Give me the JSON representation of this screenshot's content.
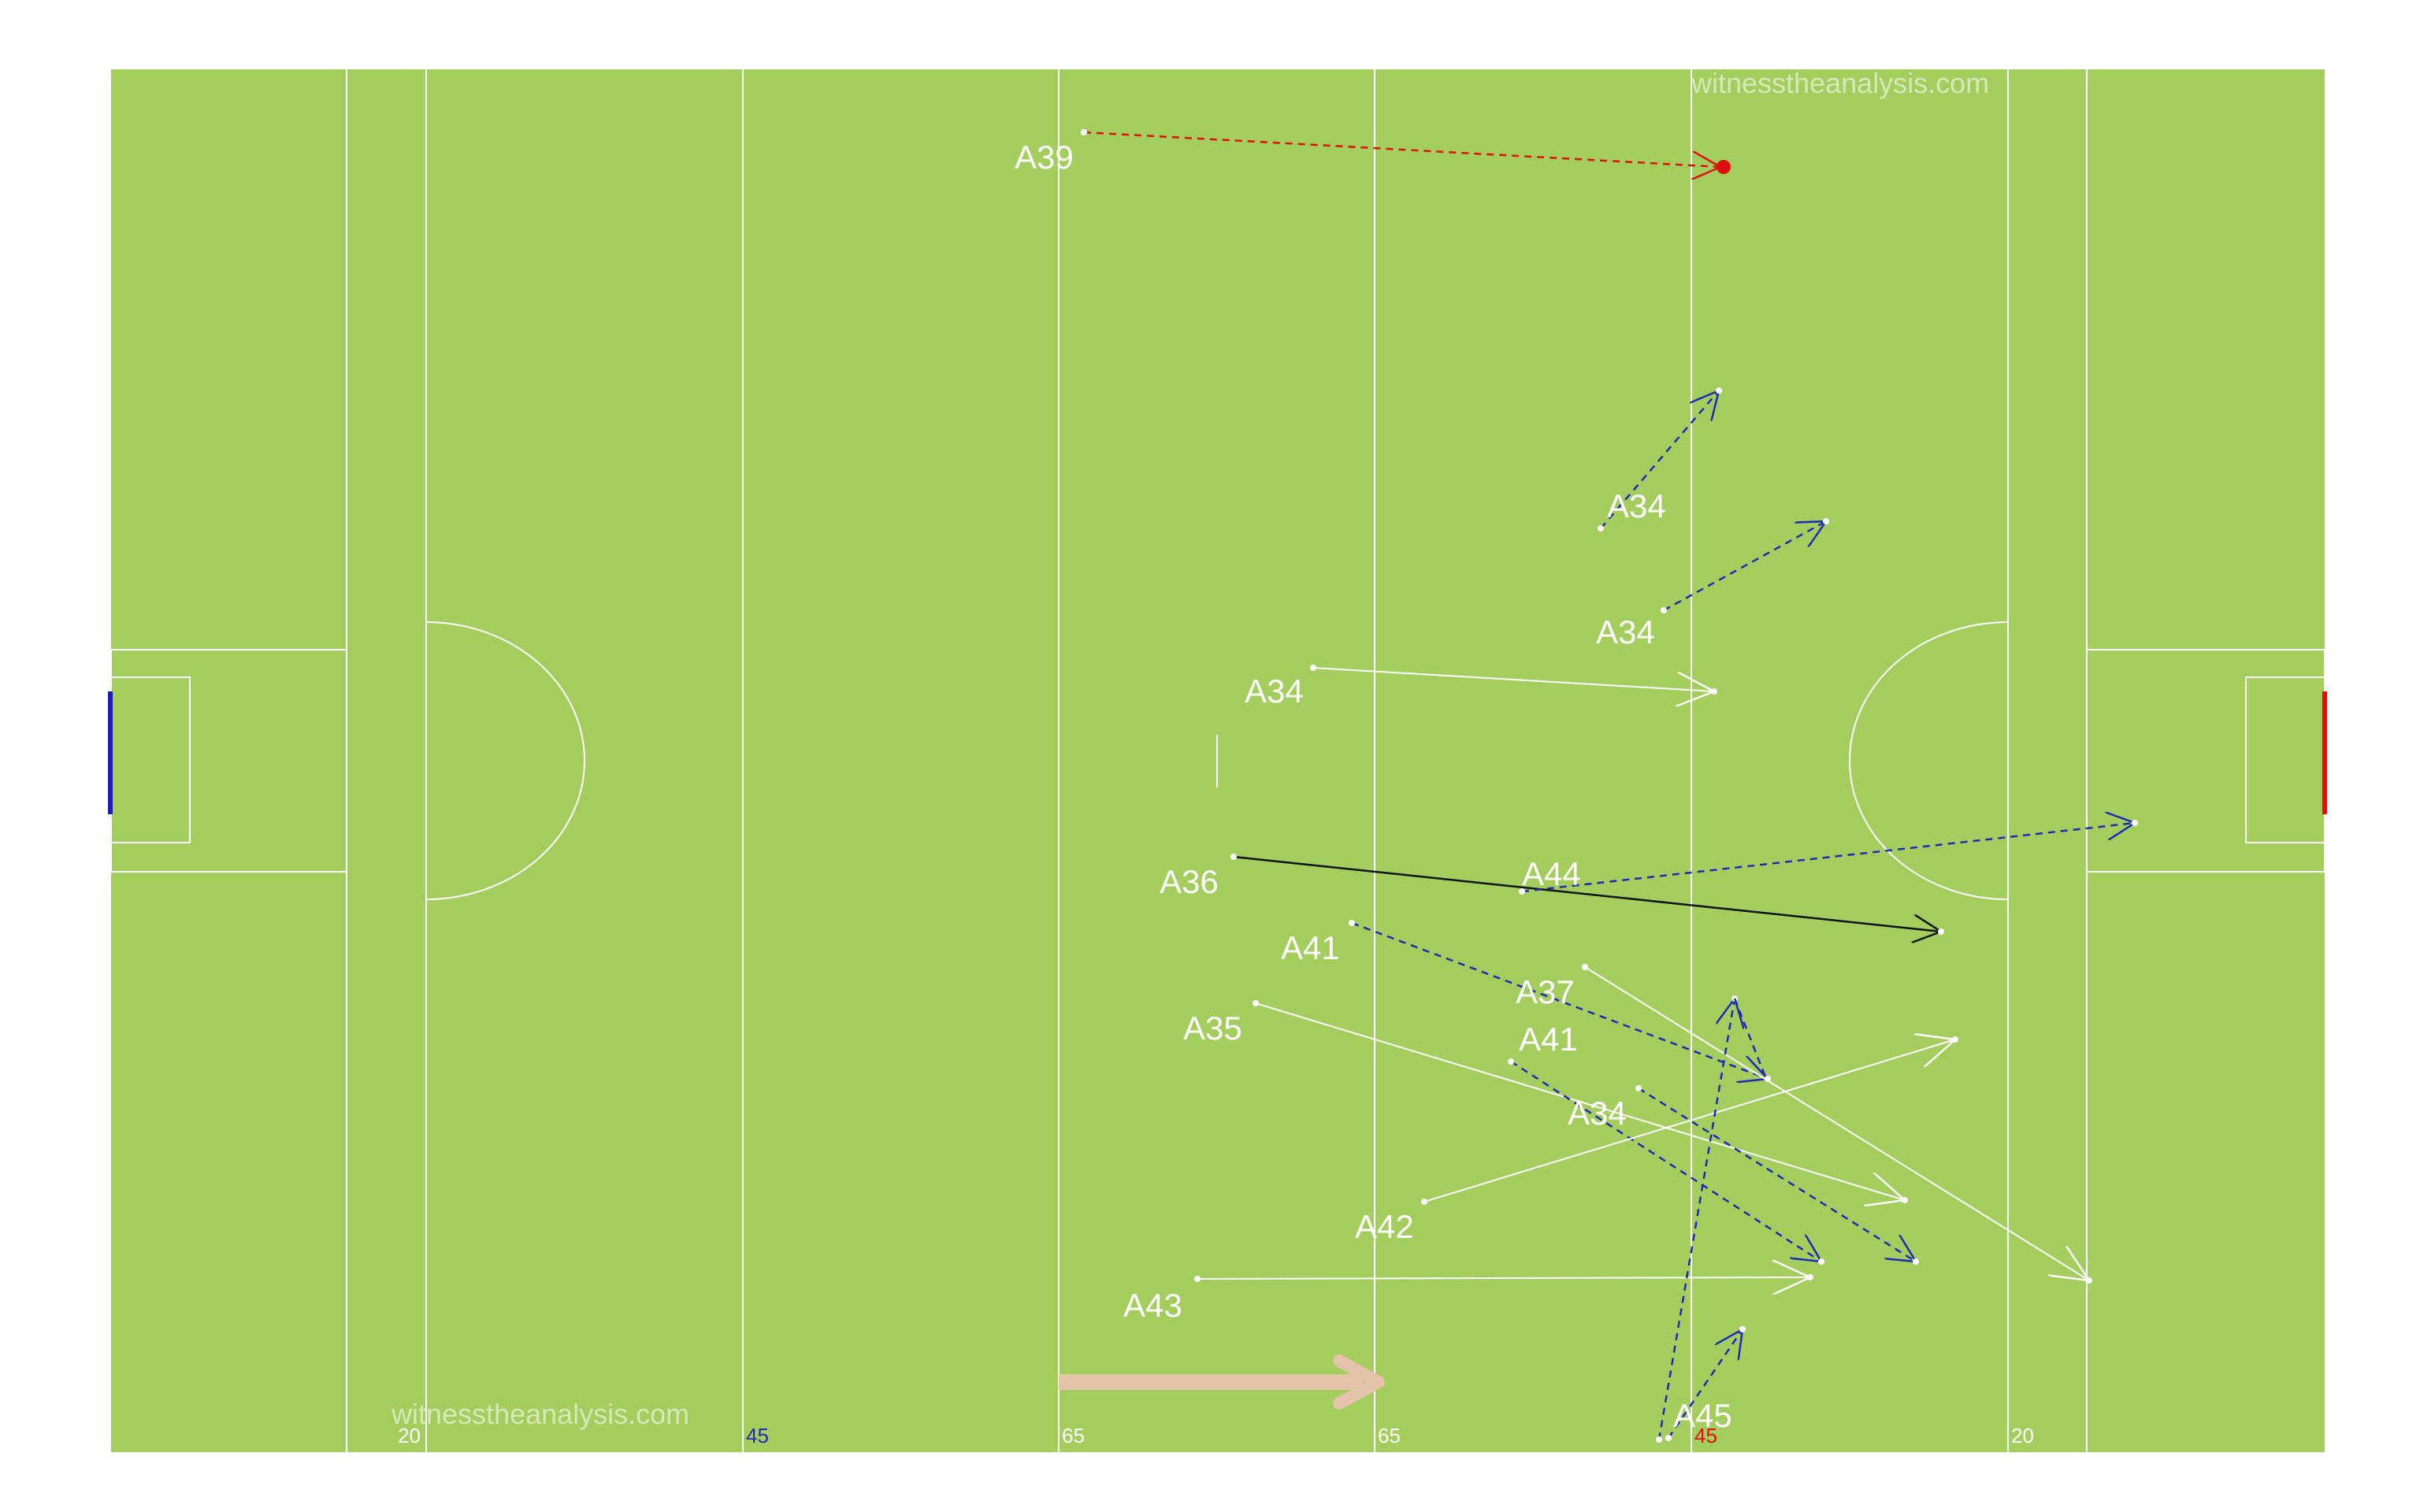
{
  "watermark": "witnesstheanalysis.com",
  "line_labels": [
    {
      "text": "20",
      "color": "#ffffff"
    },
    {
      "text": "45",
      "color": "#1f2bb8"
    },
    {
      "text": "65",
      "color": "#ffffff"
    },
    {
      "text": "65",
      "color": "#ffffff"
    },
    {
      "text": "45",
      "color": "#e01010"
    },
    {
      "text": "20",
      "color": "#ffffff"
    }
  ],
  "colors": {
    "pitch": "#a3cd5d",
    "lines": "#ffffff",
    "left_goal": "#1a1ad6",
    "right_goal": "#e01010",
    "direction_arrow": "#e3c3a9",
    "dashed_blue": "#1f2bb8",
    "dashed_red": "#e01010",
    "solid_white": "#ffffff",
    "solid_black": "#111111"
  },
  "passes": [
    {
      "label": "A39",
      "style": "dashed-red",
      "end": "dot"
    },
    {
      "label": "A34",
      "style": "dashed-blue",
      "end": "arrow"
    },
    {
      "label": "A34",
      "style": "dashed-blue",
      "end": "arrow"
    },
    {
      "label": "A34",
      "style": "solid-white",
      "end": "arrow"
    },
    {
      "label": "A36",
      "style": "solid-black",
      "end": "arrow"
    },
    {
      "label": "A44",
      "style": "dashed-blue",
      "end": "arrow"
    },
    {
      "label": "A41",
      "style": "dashed-blue",
      "end": "arrow"
    },
    {
      "label": "A37",
      "style": "solid-white",
      "end": "arrow"
    },
    {
      "label": "A35",
      "style": "solid-white",
      "end": "arrow"
    },
    {
      "label": "A41",
      "style": "dashed-blue",
      "end": "arrow"
    },
    {
      "label": "A34",
      "style": "dashed-blue",
      "end": "arrow"
    },
    {
      "label": "A42",
      "style": "solid-white",
      "end": "arrow"
    },
    {
      "label": "A43",
      "style": "solid-white",
      "end": "arrow"
    },
    {
      "label": "A45",
      "style": "dashed-blue",
      "end": "arrow"
    },
    {
      "label": "",
      "style": "dashed-blue",
      "end": "arrow"
    },
    {
      "label": "",
      "style": "dashed-blue",
      "end": "arrow"
    }
  ]
}
